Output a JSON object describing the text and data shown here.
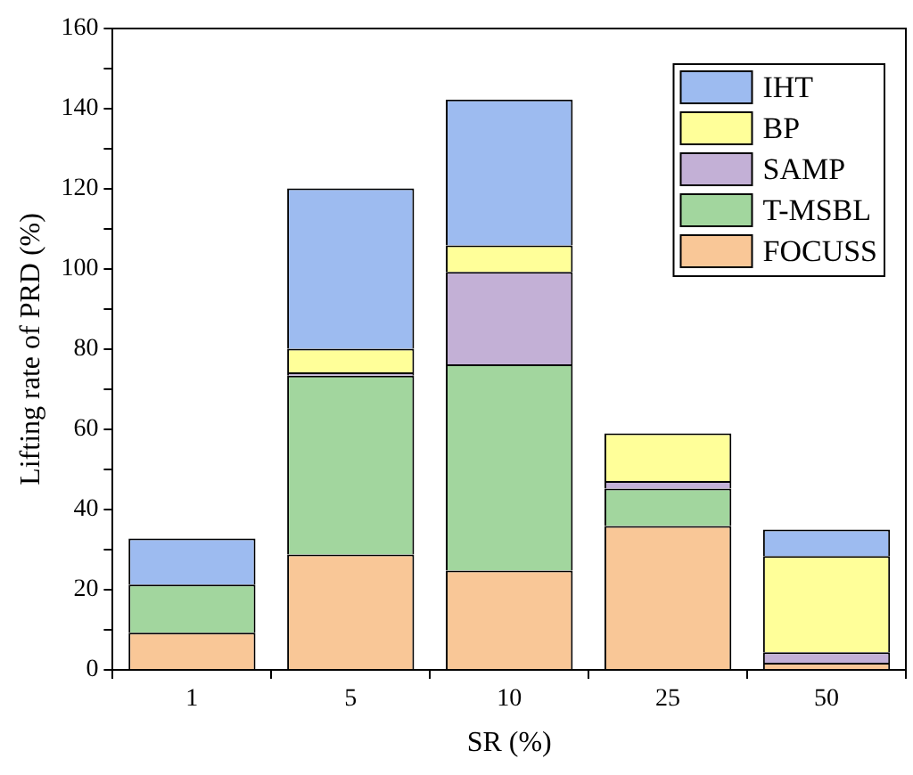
{
  "chart_data": {
    "type": "bar",
    "stacked": true,
    "xlabel": "SR (%)",
    "ylabel": "Lifting rate of PRD (%)",
    "categories": [
      "1",
      "5",
      "10",
      "25",
      "50"
    ],
    "series": [
      {
        "name": "FOCUSS",
        "color": "#f9c797",
        "values": [
          9.3,
          28.8,
          24.8,
          35.9,
          1.8
        ]
      },
      {
        "name": "T-MSBL",
        "color": "#a2d69e",
        "values": [
          12,
          44.6,
          51.4,
          9.3,
          0
        ]
      },
      {
        "name": "SAMP",
        "color": "#c3b0d6",
        "values": [
          0,
          0.8,
          23.1,
          1.9,
          2.6
        ]
      },
      {
        "name": "BP",
        "color": "#ffff99",
        "values": [
          0,
          5.9,
          6.6,
          11.9,
          24
        ]
      },
      {
        "name": "IHT",
        "color": "#9dbbf0",
        "values": [
          11.5,
          40,
          36.4,
          0,
          6.6
        ]
      }
    ],
    "ylim": [
      0,
      160
    ],
    "yticks": [
      0,
      {
        "value": 10,
        "label": null
      },
      20,
      {
        "value": 30,
        "label": null
      },
      40,
      {
        "value": 50,
        "label": null
      },
      60,
      {
        "value": 70,
        "label": null
      },
      80,
      {
        "value": 90,
        "label": null
      },
      100,
      {
        "value": 110,
        "label": null
      },
      120,
      {
        "value": 130,
        "label": null
      },
      140,
      {
        "value": 150,
        "label": null
      },
      160
    ],
    "grid": false,
    "legend": "top right"
  }
}
